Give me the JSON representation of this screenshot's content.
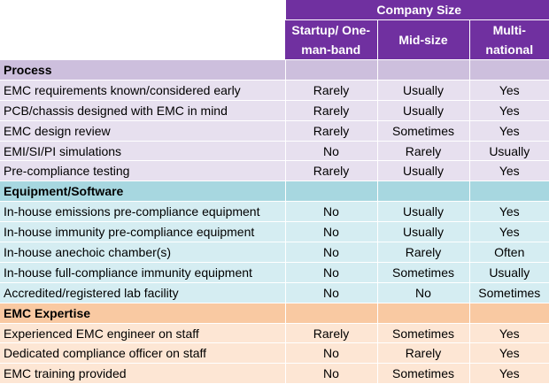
{
  "header": {
    "group_label": "Company Size",
    "columns": [
      "Startup/ One-man-band",
      "Mid-size",
      "Multi-national"
    ]
  },
  "sections": [
    {
      "title": "Process",
      "rows": [
        {
          "label": "EMC requirements known/considered early",
          "values": [
            "Rarely",
            "Usually",
            "Yes"
          ]
        },
        {
          "label": "PCB/chassis designed with EMC in mind",
          "values": [
            "Rarely",
            "Usually",
            "Yes"
          ]
        },
        {
          "label": "EMC design review",
          "values": [
            "Rarely",
            "Sometimes",
            "Yes"
          ]
        },
        {
          "label": "EMI/SI/PI simulations",
          "values": [
            "No",
            "Rarely",
            "Usually"
          ]
        },
        {
          "label": "Pre-compliance testing",
          "values": [
            "Rarely",
            "Usually",
            "Yes"
          ]
        }
      ]
    },
    {
      "title": "Equipment/Software",
      "rows": [
        {
          "label": "In-house emissions pre-compliance equipment",
          "values": [
            "No",
            "Usually",
            "Yes"
          ]
        },
        {
          "label": "In-house immunity pre-compliance equipment",
          "values": [
            "No",
            "Usually",
            "Yes"
          ]
        },
        {
          "label": "In-house anechoic chamber(s)",
          "values": [
            "No",
            "Rarely",
            "Often"
          ]
        },
        {
          "label": "In-house full-compliance immunity equipment",
          "values": [
            "No",
            "Sometimes",
            "Usually"
          ]
        },
        {
          "label": "Accredited/registered lab facility",
          "values": [
            "No",
            "No",
            "Sometimes"
          ]
        }
      ]
    },
    {
      "title": "EMC Expertise",
      "rows": [
        {
          "label": "Experienced EMC engineer on staff",
          "values": [
            "Rarely",
            "Sometimes",
            "Yes"
          ]
        },
        {
          "label": "Dedicated compliance officer on staff",
          "values": [
            "No",
            "Rarely",
            "Yes"
          ]
        },
        {
          "label": "EMC training provided",
          "values": [
            "No",
            "Sometimes",
            "Yes"
          ]
        }
      ]
    }
  ]
}
